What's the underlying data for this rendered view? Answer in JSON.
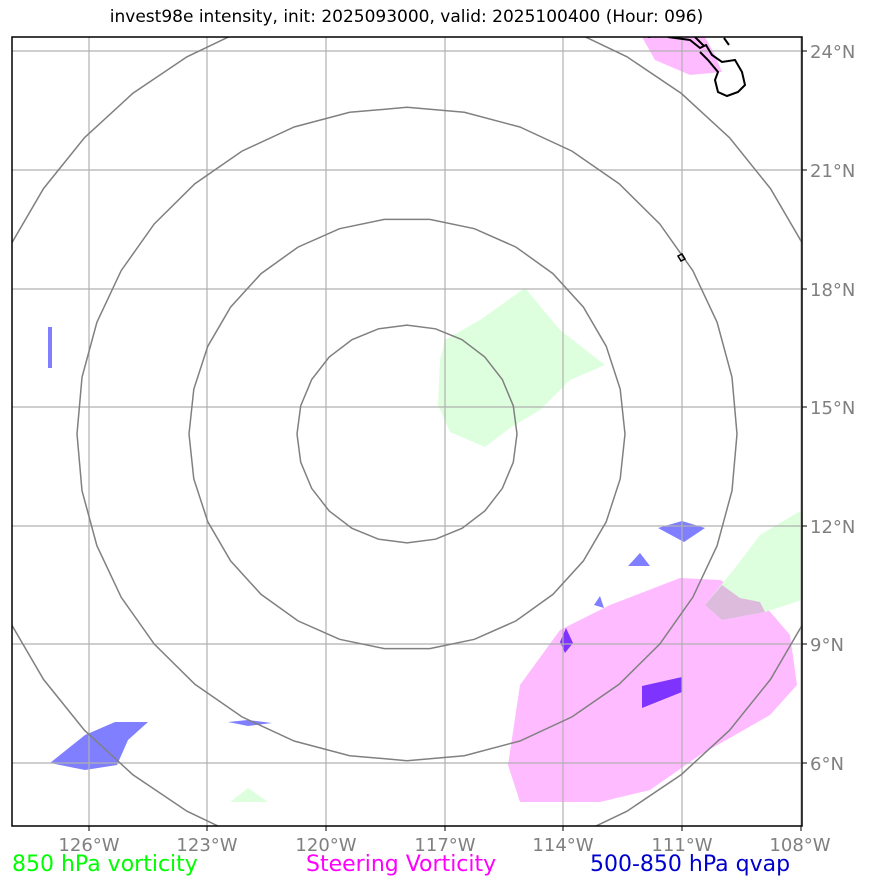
{
  "title": "invest98e intensity, init: 2025093000, valid: 2025100400 (Hour: 096)",
  "map": {
    "lon_labels": [
      "126°W",
      "123°W",
      "120°W",
      "117°W",
      "114°W",
      "111°W",
      "108°W"
    ],
    "lat_labels": [
      "24°N",
      "21°N",
      "18°N",
      "15°N",
      "12°N",
      "9°N",
      "6°N"
    ],
    "center": {
      "lon": -118.0,
      "lat": 14.5
    },
    "range_ring_count": 4
  },
  "legend": {
    "vort850": {
      "label": "850 hPa vorticity",
      "color": "#00ff00"
    },
    "steering": {
      "label": "Steering Vorticity",
      "color": "#ff00ff"
    },
    "qvap": {
      "label": "500-850 hPa qvap",
      "color": "#0000cc"
    }
  },
  "colors": {
    "vort850_fill": "#ddffdd",
    "steering_fill": "#ffbbff",
    "qvap_fill": "#7f7fff",
    "grid": "#b0b0b0",
    "rings": "#808080",
    "coast": "#000000"
  }
}
